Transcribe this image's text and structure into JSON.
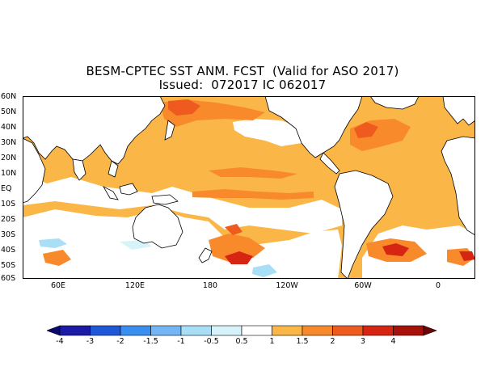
{
  "title_line1": "BESM-CPTEC SST ANM. FCST  (Valid for ASO 2017)",
  "title_line2": "Issued:  072017 IC 062017",
  "lat_labels": [
    "60N",
    "50N",
    "40N",
    "30N",
    "20N",
    "10N",
    "EQ",
    "10S",
    "20S",
    "30S",
    "40S",
    "50S",
    "60S"
  ],
  "lon_labels": [
    "60E",
    "120E",
    "180",
    "120W",
    "60W",
    "0"
  ],
  "colorbar": {
    "labels": [
      "-4",
      "-3",
      "-2",
      "-1.5",
      "-1",
      "-0.5",
      "0.5",
      "1",
      "1.5",
      "2",
      "3",
      "4"
    ],
    "colors": [
      "#1b1ba8",
      "#1f57d9",
      "#3a8ef0",
      "#74b6f5",
      "#a9def7",
      "#d6f3fa",
      "#ffffff",
      "#fbb648",
      "#f98a2c",
      "#ef5a1e",
      "#d62512",
      "#a8100a"
    ],
    "under_color": "#0a0a6e",
    "over_color": "#6e0605"
  },
  "palette": {
    "land": "#ffffff",
    "anom_05_1": "#fbb648",
    "anom_1_15": "#f98a2c",
    "anom_15_2": "#ef5a1e",
    "anom_2_3": "#d62512",
    "anom_3_4": "#a8100a",
    "anom_neg_05": "#d6f3fa",
    "anom_neg_1": "#a9def7"
  }
}
